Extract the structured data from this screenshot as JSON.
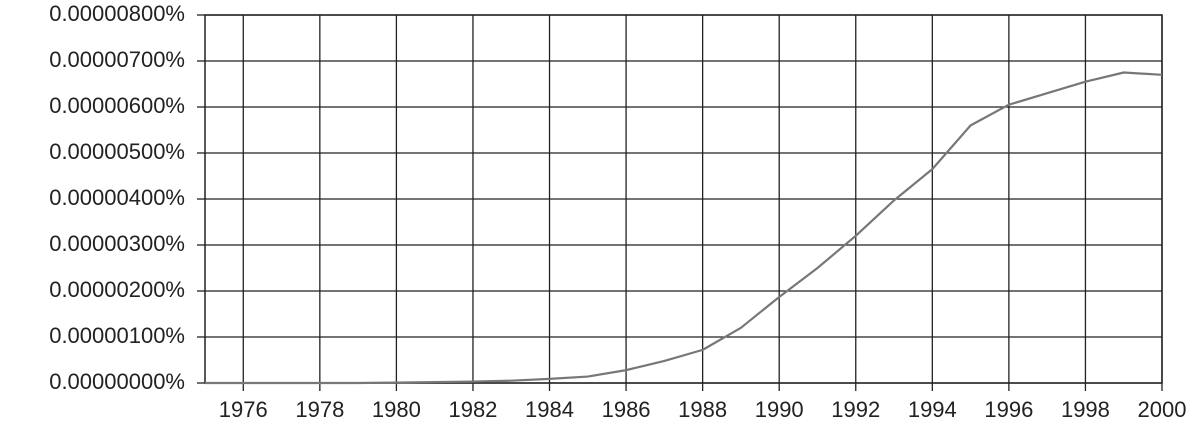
{
  "chart_data": {
    "type": "line",
    "x": [
      1975,
      1976,
      1977,
      1978,
      1979,
      1980,
      1981,
      1982,
      1983,
      1984,
      1985,
      1986,
      1987,
      1988,
      1989,
      1990,
      1991,
      1992,
      1993,
      1994,
      1995,
      1996,
      1997,
      1998,
      1999,
      2000
    ],
    "values": [
      0,
      0,
      0,
      0,
      0,
      1e-08,
      2e-08,
      3e-08,
      5e-08,
      9e-08,
      1.4e-07,
      2.8e-07,
      4.8e-07,
      7.2e-07,
      1.2e-06,
      1.87e-06,
      2.5e-06,
      3.2e-06,
      3.97e-06,
      4.65e-06,
      5.6e-06,
      6.05e-06,
      6.3e-06,
      6.55e-06,
      6.75e-06,
      6.7e-06
    ],
    "color": "#777777",
    "xlim": [
      1975,
      2000
    ],
    "xticks": [
      1976,
      1978,
      1980,
      1982,
      1984,
      1986,
      1988,
      1990,
      1992,
      1994,
      1996,
      1998,
      2000
    ],
    "ylim": [
      0,
      8e-06
    ],
    "yticks": [
      {
        "value": 0,
        "label": "0.00000000%"
      },
      {
        "value": 1e-06,
        "label": "0.00000100%"
      },
      {
        "value": 2e-06,
        "label": "0.00000200%"
      },
      {
        "value": 3e-06,
        "label": "0.00000300%"
      },
      {
        "value": 4e-06,
        "label": "0.00000400%"
      },
      {
        "value": 5e-06,
        "label": "0.00000500%"
      },
      {
        "value": 6e-06,
        "label": "0.00000600%"
      },
      {
        "value": 7e-06,
        "label": "0.00000700%"
      },
      {
        "value": 8e-06,
        "label": "0.00000800%"
      }
    ],
    "grid": true
  }
}
